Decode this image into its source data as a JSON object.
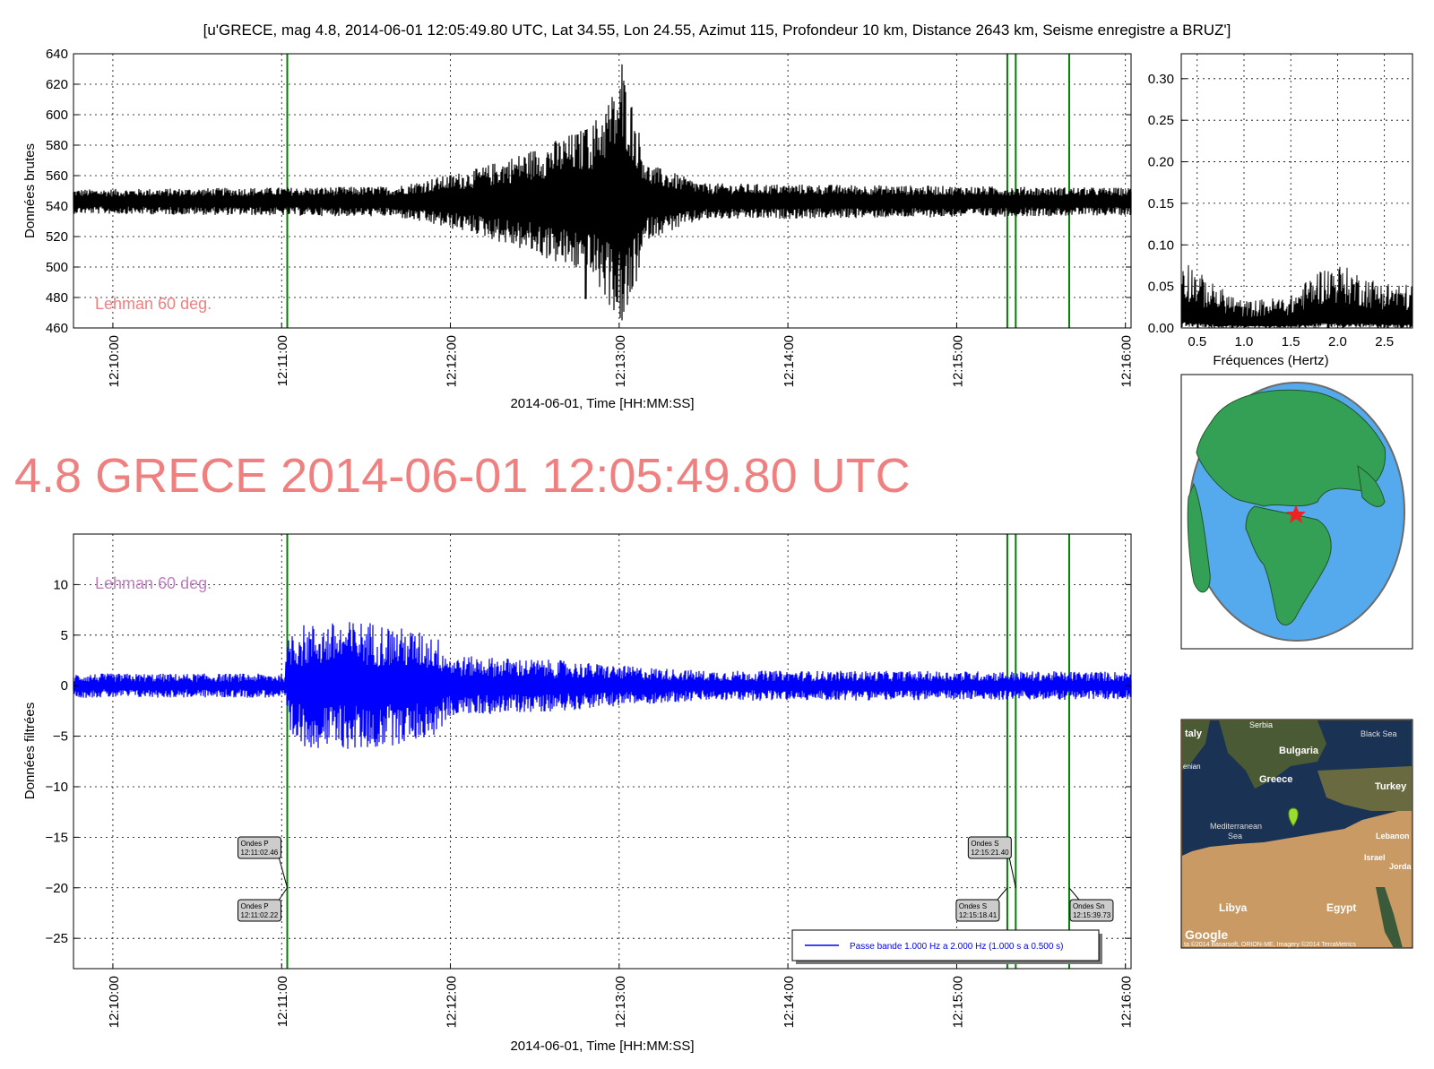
{
  "header_title": "[u'GRECE, mag 4.8, 2014-06-01 12:05:49.80 UTC, Lat 34.55, Lon 24.55, Azimut 115, Profondeur 10 km, Distance  2643 km, Seisme enregistre a BRUZ']",
  "big_title": "4.8 GRECE 2014-06-01 12:05:49.80 UTC",
  "colors": {
    "raw_trace": "#000000",
    "filtered_trace": "#0000ff",
    "phase_line": "#008000",
    "annotation_top": "#f08080",
    "annotation_bottom": "#c080c0",
    "title": "#f08080"
  },
  "chart_data": [
    {
      "type": "line",
      "name": "raw-seismogram",
      "ylabel": "Données brutes",
      "xlabel": "2014-06-01, Time [HH:MM:SS]",
      "xlim": [
        "12:09:46",
        "12:16:02"
      ],
      "ylim": [
        460,
        640
      ],
      "yticks": [
        460,
        480,
        500,
        520,
        540,
        560,
        580,
        600,
        620,
        640
      ],
      "xticks": [
        "12:10:00",
        "12:11:00",
        "12:12:00",
        "12:13:00",
        "12:14:00",
        "12:15:00",
        "12:16:00"
      ],
      "grid": true,
      "baseline": 543,
      "annotation": "Lehman 60 deg.",
      "phase_lines": [
        "12:11:02",
        "12:15:18",
        "12:15:21",
        "12:15:40"
      ],
      "envelope": [
        {
          "t": "12:09:46",
          "amp": 8
        },
        {
          "t": "12:11:40",
          "amp": 10
        },
        {
          "t": "12:12:10",
          "amp": 22
        },
        {
          "t": "12:12:30",
          "amp": 35
        },
        {
          "t": "12:12:50",
          "amp": 50
        },
        {
          "t": "12:13:02",
          "amp": 85
        },
        {
          "t": "12:13:10",
          "amp": 25
        },
        {
          "t": "12:13:30",
          "amp": 12
        },
        {
          "t": "12:16:02",
          "amp": 9
        }
      ],
      "peaks": [
        {
          "t": "12:13:01",
          "max": 633,
          "min": 465
        },
        {
          "t": "12:12:48",
          "max": 590,
          "min": 479
        }
      ]
    },
    {
      "type": "line",
      "name": "spectrum",
      "xlabel": "Fréquences (Hertz)",
      "xlim": [
        0.33,
        2.8
      ],
      "ylim": [
        0.0,
        0.33
      ],
      "xticks": [
        0.5,
        1.0,
        1.5,
        2.0,
        2.5
      ],
      "yticks": [
        0.0,
        0.05,
        0.1,
        0.15,
        0.2,
        0.25,
        0.3
      ],
      "profile": [
        {
          "f": 0.33,
          "v": 0.07
        },
        {
          "f": 0.6,
          "v": 0.045
        },
        {
          "f": 1.0,
          "v": 0.025
        },
        {
          "f": 1.5,
          "v": 0.03
        },
        {
          "f": 1.8,
          "v": 0.055
        },
        {
          "f": 2.0,
          "v": 0.06
        },
        {
          "f": 2.4,
          "v": 0.045
        },
        {
          "f": 2.8,
          "v": 0.04
        }
      ]
    },
    {
      "type": "line",
      "name": "filtered-seismogram",
      "ylabel": "Données filtrées",
      "xlabel": "2014-06-01, Time [HH:MM:SS]",
      "xlim": [
        "12:09:46",
        "12:16:02"
      ],
      "ylim": [
        -28,
        15
      ],
      "yticks": [
        -25,
        -20,
        -15,
        -10,
        -5,
        0,
        5,
        10
      ],
      "xticks": [
        "12:10:00",
        "12:11:00",
        "12:12:00",
        "12:13:00",
        "12:14:00",
        "12:15:00",
        "12:16:00"
      ],
      "grid": true,
      "annotation": "Lehman 60 deg.",
      "phase_lines": [
        "12:11:02",
        "12:15:18",
        "12:15:21",
        "12:15:40"
      ],
      "legend": "Passe bande 1.000 Hz a 2.000 Hz (1.000 s a 0.500 s)",
      "envelope": [
        {
          "t": "12:09:46",
          "amp": 1.2
        },
        {
          "t": "12:11:01",
          "amp": 1.2
        },
        {
          "t": "12:11:03",
          "amp": 6
        },
        {
          "t": "12:11:30",
          "amp": 6.5
        },
        {
          "t": "12:11:55",
          "amp": 5
        },
        {
          "t": "12:12:00",
          "amp": 3
        },
        {
          "t": "12:12:40",
          "amp": 2.5
        },
        {
          "t": "12:13:00",
          "amp": 2
        },
        {
          "t": "12:13:30",
          "amp": 1.5
        },
        {
          "t": "12:16:02",
          "amp": 1.4
        }
      ],
      "phase_labels": [
        {
          "text1": "Ondes P",
          "text2": "12:11:02.46",
          "t": "12:11:02"
        },
        {
          "text1": "Ondes P",
          "text2": "12:11:02.22",
          "t": "12:11:02"
        },
        {
          "text1": "Ondes S",
          "text2": "12:15:21.40",
          "t": "12:15:21"
        },
        {
          "text1": "Ondes S",
          "text2": "12:15:18.41",
          "t": "12:15:18"
        },
        {
          "text1": "Ondes Sn",
          "text2": "12:15:39.73",
          "t": "12:15:40"
        }
      ]
    }
  ],
  "map_labels": {
    "italy": "taly",
    "serbia": "Serbia",
    "bulgaria": "Bulgaria",
    "black_sea": "Black Sea",
    "greece": "Greece",
    "turkey": "Turkey",
    "mediterranean": "Mediterranean",
    "sea": "Sea",
    "lebanon": "Lebanon",
    "israel": "Israel",
    "jordan": "Jorda",
    "libya": "Libya",
    "egypt": "Egypt",
    "google": "Google",
    "marker": "E",
    "footer": "ta ©2014 Basarsoft, ORION-ME, Imagery ©2014 TerraMetrics",
    "armenian": "enian"
  }
}
